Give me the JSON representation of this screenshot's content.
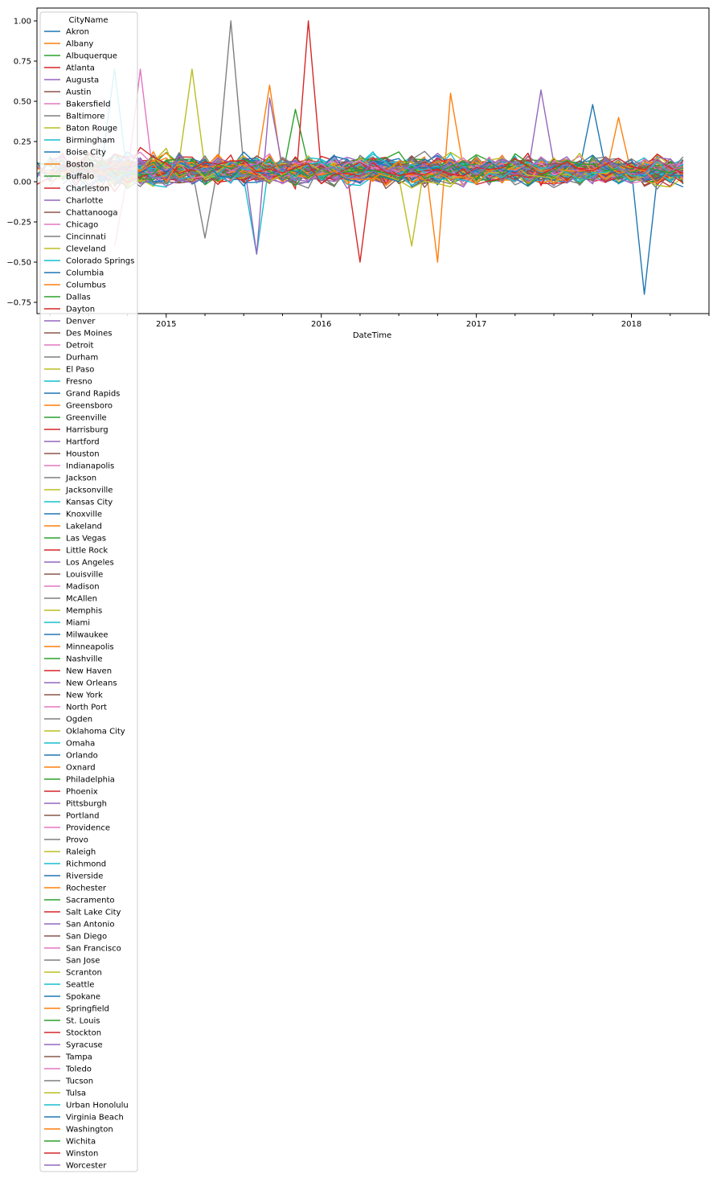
{
  "chart_data": {
    "type": "line",
    "xlabel": "DateTime",
    "ylabel": "",
    "x_ticks": [
      "2015",
      "2016",
      "2017",
      "2018"
    ],
    "y_ticks": [
      -0.75,
      -0.5,
      -0.25,
      0.0,
      0.25,
      0.5,
      0.75,
      1.0
    ],
    "y_tick_labels": [
      "−0.75",
      "−0.50",
      "−0.25",
      "0.00",
      "0.25",
      "0.50",
      "0.75",
      "1.00"
    ],
    "xlim": [
      "2014-03",
      "2018-07"
    ],
    "ylim": [
      -0.82,
      1.08
    ],
    "grid": false,
    "legend": {
      "title": "CityName",
      "placement": "upper-left"
    },
    "colors": [
      "#1f77b4",
      "#ff7f0e",
      "#2ca02c",
      "#d62728",
      "#9467bd",
      "#8c564b",
      "#e377c2",
      "#7f7f7f",
      "#bcbd22",
      "#17becf"
    ],
    "series_names": [
      "Akron",
      "Albany",
      "Albuquerque",
      "Atlanta",
      "Augusta",
      "Austin",
      "Bakersfield",
      "Baltimore",
      "Baton Rouge",
      "Birmingham",
      "Boise City",
      "Boston",
      "Buffalo",
      "Charleston",
      "Charlotte",
      "Chattanooga",
      "Chicago",
      "Cincinnati",
      "Cleveland",
      "Colorado Springs",
      "Columbia",
      "Columbus",
      "Dallas",
      "Dayton",
      "Denver",
      "Des Moines",
      "Detroit",
      "Durham",
      "El Paso",
      "Fresno",
      "Grand Rapids",
      "Greensboro",
      "Greenville",
      "Harrisburg",
      "Hartford",
      "Houston",
      "Indianapolis",
      "Jackson",
      "Jacksonville",
      "Kansas City",
      "Knoxville",
      "Lakeland",
      "Las Vegas",
      "Little Rock",
      "Los Angeles",
      "Louisville",
      "Madison",
      "McAllen",
      "Memphis",
      "Miami",
      "Milwaukee",
      "Minneapolis",
      "Nashville",
      "New Haven",
      "New Orleans",
      "New York",
      "North Port",
      "Ogden",
      "Oklahoma City",
      "Omaha",
      "Orlando",
      "Oxnard",
      "Philadelphia",
      "Phoenix",
      "Pittsburgh",
      "Portland",
      "Providence",
      "Provo",
      "Raleigh",
      "Richmond",
      "Riverside",
      "Rochester",
      "Sacramento",
      "Salt Lake City",
      "San Antonio",
      "San Diego",
      "San Francisco",
      "San Jose",
      "Scranton",
      "Seattle",
      "Spokane",
      "Springfield",
      "St. Louis",
      "Stockton",
      "Syracuse",
      "Tampa",
      "Toledo",
      "Tucson",
      "Tulsa",
      "Urban Honolulu",
      "Virginia Beach",
      "Washington",
      "Wichita",
      "Winston",
      "Worcester"
    ],
    "x_months": [
      "2014-03",
      "2014-04",
      "2014-05",
      "2014-06",
      "2014-07",
      "2014-08",
      "2014-09",
      "2014-10",
      "2014-11",
      "2014-12",
      "2015-01",
      "2015-02",
      "2015-03",
      "2015-04",
      "2015-05",
      "2015-06",
      "2015-07",
      "2015-08",
      "2015-09",
      "2015-10",
      "2015-11",
      "2015-12",
      "2016-01",
      "2016-02",
      "2016-03",
      "2016-04",
      "2016-05",
      "2016-06",
      "2016-07",
      "2016-08",
      "2016-09",
      "2016-10",
      "2016-11",
      "2016-12",
      "2017-01",
      "2017-02",
      "2017-03",
      "2017-04",
      "2017-05",
      "2017-06",
      "2017-07",
      "2017-08",
      "2017-09",
      "2017-10",
      "2017-11",
      "2017-12",
      "2018-01",
      "2018-02",
      "2018-03",
      "2018-04",
      "2018-05"
    ],
    "spikes": [
      {
        "series": "Baltimore",
        "x": "2015-06",
        "y": 1.0
      },
      {
        "series": "Atlanta",
        "x": "2015-12",
        "y": 1.0
      },
      {
        "series": "Baton Rouge",
        "x": "2015-03",
        "y": 0.7
      },
      {
        "series": "Bakersfield",
        "x": "2014-11",
        "y": 0.7
      },
      {
        "series": "Birmingham",
        "x": "2014-09",
        "y": 0.7
      },
      {
        "series": "Boston",
        "x": "2015-09",
        "y": 0.6
      },
      {
        "series": "Augusta",
        "x": "2017-06",
        "y": 0.57
      },
      {
        "series": "Albany",
        "x": "2016-11",
        "y": 0.55
      },
      {
        "series": "Albuquerque",
        "x": "2015-11",
        "y": 0.45
      },
      {
        "series": "Akron",
        "x": "2017-10",
        "y": 0.48
      },
      {
        "series": "Charlotte",
        "x": "2015-09",
        "y": 0.52
      },
      {
        "series": "Albany",
        "x": "2017-12",
        "y": 0.4
      },
      {
        "series": "Akron",
        "x": "2018-02",
        "y": -0.7
      },
      {
        "series": "Atlanta",
        "x": "2016-04",
        "y": -0.5
      },
      {
        "series": "Albany",
        "x": "2016-10",
        "y": -0.5
      },
      {
        "series": "Birmingham",
        "x": "2015-08",
        "y": -0.45
      },
      {
        "series": "Bakersfield",
        "x": "2014-09",
        "y": -0.4
      },
      {
        "series": "Baton Rouge",
        "x": "2016-08",
        "y": -0.4
      },
      {
        "series": "Baltimore",
        "x": "2015-04",
        "y": -0.35
      },
      {
        "series": "Charlotte",
        "x": "2015-08",
        "y": -0.45
      }
    ]
  }
}
